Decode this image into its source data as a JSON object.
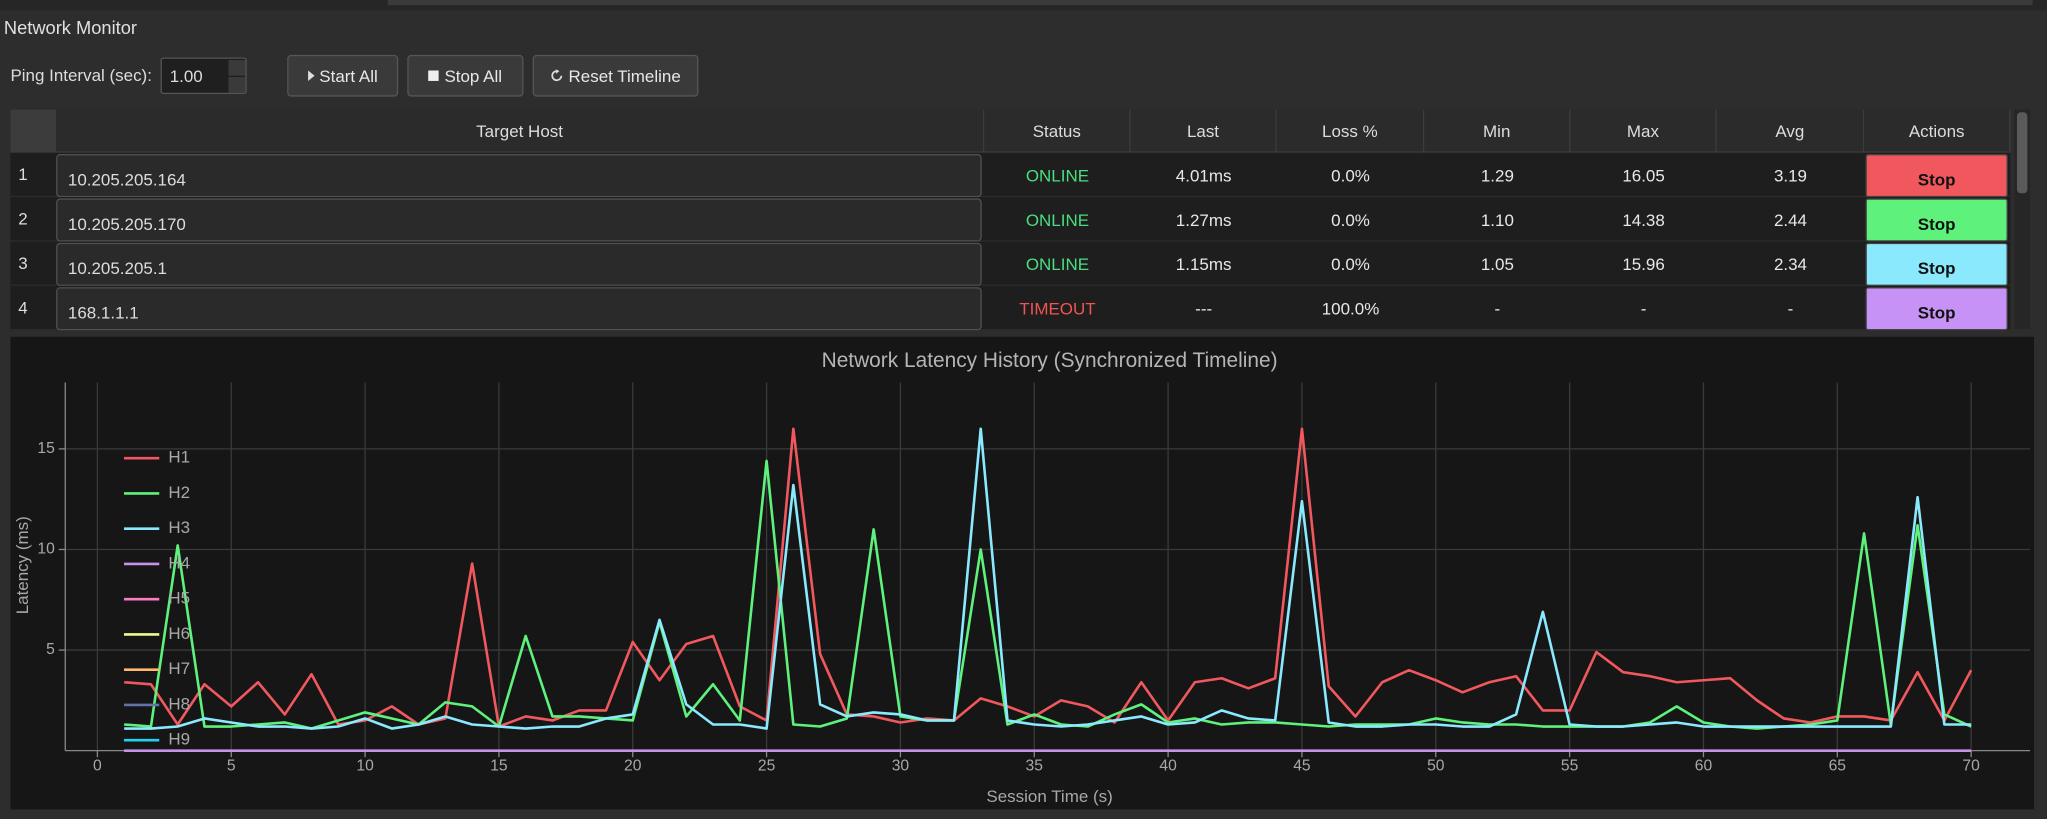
{
  "window": {
    "title": "Network Monitor"
  },
  "toolbar": {
    "interval_label": "Ping Interval (sec):",
    "interval_value": "1.00",
    "buttons": [
      "Start All",
      "Stop All",
      "Reset Timeline"
    ]
  },
  "table": {
    "headers": [
      "Target Host",
      "Status",
      "Last",
      "Loss %",
      "Min",
      "Max",
      "Avg",
      "Actions"
    ],
    "status_colors": {
      "ONLINE": "#4ade80",
      "TIMEOUT": "#f05454"
    },
    "rows": [
      {
        "index": "1",
        "host": "10.205.205.164",
        "status": "ONLINE",
        "last": "4.01ms",
        "loss": "0.0%",
        "min": "1.29",
        "max": "16.05",
        "avg": "3.19",
        "action": "Stop",
        "color": "#f0585e"
      },
      {
        "index": "2",
        "host": "10.205.205.170",
        "status": "ONLINE",
        "last": "1.27ms",
        "loss": "0.0%",
        "min": "1.10",
        "max": "14.38",
        "avg": "2.44",
        "action": "Stop",
        "color": "#5ef27c"
      },
      {
        "index": "3",
        "host": "10.205.205.1",
        "status": "ONLINE",
        "last": "1.15ms",
        "loss": "0.0%",
        "min": "1.05",
        "max": "15.96",
        "avg": "2.34",
        "action": "Stop",
        "color": "#8be9fd"
      },
      {
        "index": "4",
        "host": "168.1.1.1",
        "status": "TIMEOUT",
        "last": "---",
        "loss": "100.0%",
        "min": "-",
        "max": "-",
        "avg": "-",
        "action": "Stop",
        "color": "#c792f5"
      }
    ]
  },
  "chart": {
    "type": "line",
    "title": "Network Latency History (Synchronized Timeline)",
    "x_label": "Session Time (s)",
    "y_label": "Latency (ms)",
    "x": [
      1,
      2,
      3,
      4,
      5,
      6,
      7,
      8,
      9,
      10,
      11,
      12,
      13,
      14,
      15,
      16,
      17,
      18,
      19,
      20,
      21,
      22,
      23,
      24,
      25,
      26,
      27,
      28,
      29,
      30,
      31,
      32,
      33,
      34,
      35,
      36,
      37,
      38,
      39,
      40,
      41,
      42,
      43,
      44,
      45,
      46,
      47,
      48,
      49,
      50,
      51,
      52,
      53,
      54,
      55,
      56,
      57,
      58,
      59,
      60,
      61,
      62,
      63,
      64,
      65,
      66,
      67,
      68,
      69,
      70
    ],
    "series": [
      {
        "name": "H1",
        "color": "#f0585e",
        "values": [
          3.4,
          3.3,
          1.3,
          3.3,
          2.2,
          3.4,
          1.8,
          3.8,
          1.3,
          1.5,
          2.2,
          1.3,
          1.6,
          9.3,
          1.2,
          1.7,
          1.5,
          2.0,
          2.0,
          5.4,
          3.5,
          5.3,
          5.7,
          2.2,
          1.5,
          16.0,
          4.8,
          1.8,
          1.7,
          1.4,
          1.6,
          1.5,
          2.6,
          2.2,
          1.7,
          2.5,
          2.2,
          1.4,
          3.4,
          1.5,
          3.4,
          3.6,
          3.1,
          3.6,
          16.0,
          3.2,
          1.7,
          3.4,
          4.0,
          3.5,
          2.9,
          3.4,
          3.7,
          2.0,
          2.0,
          4.9,
          3.9,
          3.7,
          3.4,
          3.5,
          3.6,
          2.5,
          1.6,
          1.4,
          1.7,
          1.7,
          1.5,
          3.9,
          1.5,
          4.0
        ]
      },
      {
        "name": "H2",
        "color": "#5ef27c",
        "values": [
          1.3,
          1.2,
          10.2,
          1.2,
          1.2,
          1.3,
          1.4,
          1.1,
          1.5,
          1.9,
          1.6,
          1.3,
          2.4,
          2.2,
          1.2,
          5.7,
          1.7,
          1.7,
          1.6,
          1.5,
          6.4,
          1.7,
          3.3,
          1.5,
          14.4,
          1.3,
          1.2,
          1.6,
          11.0,
          1.7,
          1.5,
          1.5,
          10.0,
          1.3,
          1.8,
          1.3,
          1.2,
          1.8,
          2.3,
          1.4,
          1.6,
          1.3,
          1.4,
          1.4,
          1.3,
          1.2,
          1.3,
          1.3,
          1.3,
          1.6,
          1.4,
          1.3,
          1.3,
          1.2,
          1.2,
          1.2,
          1.2,
          1.4,
          2.2,
          1.4,
          1.2,
          1.1,
          1.2,
          1.3,
          1.5,
          10.8,
          1.3,
          11.2,
          1.8,
          1.2
        ]
      },
      {
        "name": "H3",
        "color": "#8be9fd",
        "values": [
          1.1,
          1.1,
          1.2,
          1.6,
          1.4,
          1.2,
          1.2,
          1.1,
          1.2,
          1.6,
          1.1,
          1.3,
          1.7,
          1.3,
          1.2,
          1.1,
          1.2,
          1.2,
          1.6,
          1.8,
          6.5,
          2.3,
          1.3,
          1.3,
          1.1,
          13.2,
          2.3,
          1.7,
          1.9,
          1.8,
          1.5,
          1.5,
          16.0,
          1.5,
          1.3,
          1.2,
          1.3,
          1.5,
          1.7,
          1.3,
          1.4,
          2.0,
          1.6,
          1.5,
          12.4,
          1.4,
          1.2,
          1.2,
          1.3,
          1.3,
          1.2,
          1.2,
          1.8,
          6.9,
          1.3,
          1.2,
          1.2,
          1.3,
          1.4,
          1.2,
          1.2,
          1.2,
          1.2,
          1.2,
          1.2,
          1.2,
          1.2,
          12.6,
          1.3,
          1.3
        ]
      },
      {
        "name": "H4",
        "color": "#c792ea",
        "values": [
          0,
          0,
          0,
          0,
          0,
          0,
          0,
          0,
          0,
          0,
          0,
          0,
          0,
          0,
          0,
          0,
          0,
          0,
          0,
          0,
          0,
          0,
          0,
          0,
          0,
          0,
          0,
          0,
          0,
          0,
          0,
          0,
          0,
          0,
          0,
          0,
          0,
          0,
          0,
          0,
          0,
          0,
          0,
          0,
          0,
          0,
          0,
          0,
          0,
          0,
          0,
          0,
          0,
          0,
          0,
          0,
          0,
          0,
          0,
          0,
          0,
          0,
          0,
          0,
          0,
          0,
          0,
          0,
          0,
          0
        ]
      },
      {
        "name": "H5",
        "color": "#ff79c6"
      },
      {
        "name": "H6",
        "color": "#f1fa8c"
      },
      {
        "name": "H7",
        "color": "#ffb86c"
      },
      {
        "name": "H8",
        "color": "#6272a4"
      },
      {
        "name": "H9",
        "color": "#22d3ee"
      }
    ],
    "xlim": [
      -1.2,
      72.2
    ],
    "ylim": [
      0,
      18.3
    ],
    "xticks": [
      0,
      5,
      10,
      15,
      20,
      25,
      30,
      35,
      40,
      45,
      50,
      55,
      60,
      65,
      70
    ],
    "yticks": [
      5,
      10,
      15
    ],
    "grid": true,
    "legend": "upper left"
  }
}
